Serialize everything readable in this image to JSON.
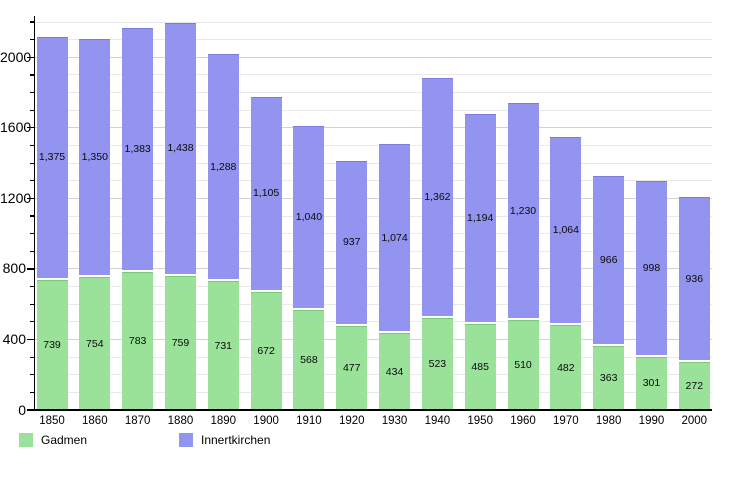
{
  "chart_data": {
    "type": "bar",
    "stacked": true,
    "title": "",
    "xlabel": "",
    "ylabel": "",
    "categories": [
      "1850",
      "1860",
      "1870",
      "1880",
      "1890",
      "1900",
      "1910",
      "1920",
      "1930",
      "1940",
      "1950",
      "1960",
      "1970",
      "1980",
      "1990",
      "2000"
    ],
    "series": [
      {
        "name": "Gadmen",
        "color": "#9ae19a",
        "values": [
          739,
          754,
          783,
          759,
          731,
          672,
          568,
          477,
          434,
          523,
          485,
          510,
          482,
          363,
          301,
          272
        ]
      },
      {
        "name": "Innertkirchen",
        "color": "#9393f0",
        "values": [
          1375,
          1350,
          1383,
          1438,
          1288,
          1105,
          1040,
          937,
          1074,
          1362,
          1194,
          1230,
          1064,
          966,
          998,
          936
        ]
      }
    ],
    "ylim": [
      0,
      2245
    ],
    "y_ticks": [
      0,
      400,
      800,
      1200,
      1600,
      2000
    ],
    "grid": {
      "on": true,
      "minor_step": 100,
      "major_step": 400,
      "top_line": 2200
    },
    "value_labels": "inside-segments, thousands with comma",
    "legend_position": "bottom-left"
  }
}
